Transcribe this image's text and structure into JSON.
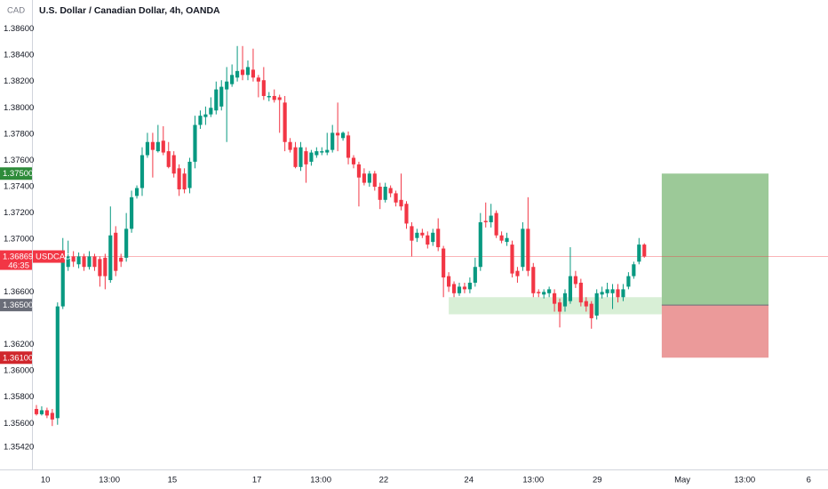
{
  "header": {
    "currency": "CAD"
  },
  "chart_data": {
    "type": "candlestick",
    "title": "U.S. Dollar / Canadian Dollar, 4h, OANDA",
    "x": [
      0,
      1,
      2,
      3,
      4,
      5,
      6,
      7,
      8,
      9,
      10,
      11,
      12,
      13,
      14,
      15,
      16,
      17,
      18,
      19,
      20,
      21,
      22,
      23,
      24,
      25,
      26,
      27,
      28,
      29,
      30,
      31,
      32,
      33,
      34,
      35,
      36,
      37,
      38,
      39,
      40,
      41,
      42,
      43,
      44,
      45,
      46,
      47,
      48,
      49,
      50,
      51,
      52,
      53,
      54,
      55,
      56,
      57,
      58,
      59,
      60,
      61,
      62,
      63,
      64,
      65,
      66,
      67,
      68,
      69,
      70,
      71,
      72,
      73,
      74,
      75,
      76,
      77,
      78,
      79,
      80,
      81,
      82,
      83,
      84,
      85,
      86,
      87,
      88,
      89,
      90,
      91,
      92,
      93,
      94,
      95,
      96,
      97,
      98,
      99,
      100,
      101,
      102,
      103,
      104,
      105,
      106,
      107,
      108,
      109,
      110,
      111,
      112,
      113,
      114,
      115
    ],
    "open": [
      1.3571,
      1.3567,
      1.357,
      1.3568,
      1.3564,
      1.3649,
      1.3679,
      1.3687,
      1.3681,
      1.3687,
      1.3679,
      1.3687,
      1.3685,
      1.3686,
      1.3669,
      1.3705,
      1.3686,
      1.3686,
      1.3708,
      1.3733,
      1.3739,
      1.3764,
      1.3774,
      1.3767,
      1.3775,
      1.3767,
      1.3764,
      1.3754,
      1.375,
      1.3739,
      1.3759,
      1.3787,
      1.3793,
      1.3795,
      1.3798,
      1.3801,
      1.3814,
      1.3818,
      1.3823,
      1.3829,
      1.3825,
      1.3829,
      1.3823,
      1.3821,
      1.3808,
      1.3809,
      1.3808,
      1.3804,
      1.3774,
      1.377,
      1.3755,
      1.3767,
      1.3759,
      1.3764,
      1.3766,
      1.3766,
      1.3768,
      1.3781,
      1.3777,
      1.3779,
      1.3762,
      1.3757,
      1.375,
      1.3743,
      1.375,
      1.374,
      1.373,
      1.3739,
      1.3735,
      1.373,
      1.3727,
      1.371,
      1.3701,
      1.3705,
      1.3703,
      1.3698,
      1.3708,
      1.3693,
      1.3672,
      1.3666,
      1.3659,
      1.3664,
      1.3662,
      1.3667,
      1.3679,
      1.3714,
      1.3713,
      1.372,
      1.3703,
      1.3698,
      1.3696,
      1.3676,
      1.3679,
      1.3708,
      1.3679,
      1.366,
      1.3658,
      1.3659,
      1.3659,
      1.3652,
      1.3649,
      1.3653,
      1.3672,
      1.3667,
      1.3653,
      1.3651,
      1.3642,
      1.3658,
      1.3659,
      1.3659,
      1.3662,
      1.3656,
      1.3664,
      1.3672,
      1.3683,
      1.3696
    ],
    "high": [
      1.3574,
      1.3573,
      1.3572,
      1.3571,
      1.3652,
      1.3701,
      1.3699,
      1.3691,
      1.369,
      1.3689,
      1.3691,
      1.3689,
      1.3687,
      1.3689,
      1.3725,
      1.371,
      1.3689,
      1.372,
      1.3737,
      1.3741,
      1.377,
      1.3781,
      1.3781,
      1.3787,
      1.3786,
      1.3774,
      1.3767,
      1.3757,
      1.3754,
      1.3762,
      1.3794,
      1.3798,
      1.3801,
      1.3808,
      1.382,
      1.3821,
      1.3831,
      1.3833,
      1.3847,
      1.3847,
      1.3836,
      1.3845,
      1.3825,
      1.3831,
      1.3812,
      1.3814,
      1.381,
      1.3809,
      1.3777,
      1.3774,
      1.3774,
      1.377,
      1.3768,
      1.377,
      1.377,
      1.3781,
      1.3787,
      1.3804,
      1.3782,
      1.3782,
      1.3764,
      1.3759,
      1.3754,
      1.3752,
      1.3752,
      1.3743,
      1.3743,
      1.3741,
      1.3737,
      1.375,
      1.3729,
      1.3713,
      1.3708,
      1.3708,
      1.3706,
      1.3708,
      1.3716,
      1.3695,
      1.3675,
      1.3668,
      1.3667,
      1.3667,
      1.3671,
      1.3686,
      1.372,
      1.3728,
      1.3727,
      1.3722,
      1.3706,
      1.3705,
      1.3699,
      1.3679,
      1.3713,
      1.3732,
      1.3682,
      1.3662,
      1.3662,
      1.3664,
      1.3662,
      1.3655,
      1.3662,
      1.3694,
      1.3676,
      1.367,
      1.3656,
      1.3653,
      1.3662,
      1.3664,
      1.3667,
      1.3666,
      1.3666,
      1.3666,
      1.3675,
      1.3683,
      1.3701,
      1.3697
    ],
    "low": [
      1.3566,
      1.3566,
      1.3564,
      1.3558,
      1.3559,
      1.3647,
      1.3676,
      1.3679,
      1.3678,
      1.3676,
      1.3677,
      1.3676,
      1.3664,
      1.3662,
      1.3667,
      1.3672,
      1.3679,
      1.3683,
      1.3705,
      1.3731,
      1.3733,
      1.3762,
      1.3747,
      1.3766,
      1.3764,
      1.3754,
      1.3747,
      1.3733,
      1.3735,
      1.3735,
      1.3754,
      1.3784,
      1.3787,
      1.3793,
      1.3795,
      1.3798,
      1.3774,
      1.3816,
      1.382,
      1.3821,
      1.3821,
      1.382,
      1.3808,
      1.3806,
      1.3805,
      1.3804,
      1.3781,
      1.3767,
      1.3766,
      1.3754,
      1.3752,
      1.3743,
      1.3756,
      1.3762,
      1.3764,
      1.3764,
      1.3766,
      1.3767,
      1.3775,
      1.3757,
      1.3754,
      1.3725,
      1.3741,
      1.374,
      1.3737,
      1.3723,
      1.3728,
      1.3732,
      1.3725,
      1.3722,
      1.3708,
      1.3687,
      1.3698,
      1.3701,
      1.3693,
      1.3695,
      1.3691,
      1.3656,
      1.366,
      1.3656,
      1.3657,
      1.3659,
      1.3659,
      1.3664,
      1.3676,
      1.3709,
      1.3709,
      1.3701,
      1.3697,
      1.3695,
      1.3671,
      1.3667,
      1.3676,
      1.3672,
      1.3656,
      1.3656,
      1.3655,
      1.3656,
      1.3645,
      1.3633,
      1.3645,
      1.3651,
      1.3663,
      1.3649,
      1.3645,
      1.3632,
      1.3639,
      1.3655,
      1.3656,
      1.3647,
      1.3652,
      1.3653,
      1.3662,
      1.367,
      1.3681,
      1.3686
    ],
    "close": [
      1.3567,
      1.357,
      1.3566,
      1.3563,
      1.3649,
      1.3683,
      1.3687,
      1.3683,
      1.3687,
      1.3679,
      1.3687,
      1.3679,
      1.3672,
      1.3672,
      1.3703,
      1.3676,
      1.3683,
      1.3708,
      1.3732,
      1.3739,
      1.3764,
      1.3774,
      1.3768,
      1.3774,
      1.3766,
      1.3755,
      1.375,
      1.3738,
      1.3738,
      1.3759,
      1.3787,
      1.3794,
      1.3795,
      1.38,
      1.3814,
      1.3816,
      1.382,
      1.3825,
      1.3828,
      1.3825,
      1.3831,
      1.3823,
      1.382,
      1.3809,
      1.3809,
      1.3806,
      1.3806,
      1.3774,
      1.3768,
      1.3755,
      1.377,
      1.3757,
      1.3766,
      1.3767,
      1.3767,
      1.3768,
      1.3781,
      1.3779,
      1.3781,
      1.3762,
      1.3757,
      1.3747,
      1.3743,
      1.375,
      1.374,
      1.373,
      1.374,
      1.3735,
      1.3728,
      1.3725,
      1.3712,
      1.3699,
      1.3705,
      1.3703,
      1.3696,
      1.3705,
      1.3694,
      1.3671,
      1.3664,
      1.3659,
      1.3664,
      1.3662,
      1.3667,
      1.3679,
      1.3713,
      1.3713,
      1.3718,
      1.3703,
      1.3699,
      1.3701,
      1.3674,
      1.3672,
      1.3708,
      1.3676,
      1.3659,
      1.3659,
      1.366,
      1.3662,
      1.3651,
      1.3645,
      1.3659,
      1.3672,
      1.3666,
      1.3652,
      1.3649,
      1.364,
      1.3659,
      1.366,
      1.3662,
      1.3662,
      1.3656,
      1.3662,
      1.3672,
      1.3681,
      1.3696,
      1.3687
    ],
    "up_color": "#089981",
    "down_color": "#f23645",
    "xlim": [
      -0.84,
      149.75
    ],
    "xticks": [
      {
        "value": 1.7,
        "label": "10"
      },
      {
        "value": 13.8,
        "label": "13:00"
      },
      {
        "value": 25.7,
        "label": "15"
      },
      {
        "value": 41.7,
        "label": "17"
      },
      {
        "value": 53.8,
        "label": "13:00"
      },
      {
        "value": 65.7,
        "label": "22"
      },
      {
        "value": 81.8,
        "label": "24"
      },
      {
        "value": 94.0,
        "label": "13:00"
      },
      {
        "value": 106.1,
        "label": "29"
      },
      {
        "value": 122.2,
        "label": "May"
      },
      {
        "value": 134.0,
        "label": "13:00"
      },
      {
        "value": 146.1,
        "label": "6"
      }
    ],
    "ylim": [
      1.3525,
      1.3882
    ],
    "yticks": [
      {
        "value": 1.386,
        "label": "1.38600"
      },
      {
        "value": 1.384,
        "label": "1.38400"
      },
      {
        "value": 1.382,
        "label": "1.38200"
      },
      {
        "value": 1.38,
        "label": "1.38000"
      },
      {
        "value": 1.378,
        "label": "1.37800"
      },
      {
        "value": 1.376,
        "label": "1.37600"
      },
      {
        "value": 1.374,
        "label": "1.37400"
      },
      {
        "value": 1.372,
        "label": "1.37200"
      },
      {
        "value": 1.37,
        "label": "1.37000"
      },
      {
        "value": 1.366,
        "label": "1.36600"
      },
      {
        "value": 1.362,
        "label": "1.36200"
      },
      {
        "value": 1.36,
        "label": "1.36000"
      },
      {
        "value": 1.358,
        "label": "1.35800"
      },
      {
        "value": 1.356,
        "label": "1.35600"
      },
      {
        "value": 1.3542,
        "label": "1.35420"
      }
    ],
    "grid": false,
    "price_line": {
      "value": 1.36869,
      "label": "1.36869",
      "symbol": "USDCAD",
      "countdown": "46:35",
      "color": "#f23645"
    },
    "position": {
      "x_range": [
        118.3,
        138.5
      ],
      "target": {
        "value": 1.375,
        "label": "1.37500",
        "color": "#2e8b3a"
      },
      "entry": {
        "value": 1.365,
        "label": "1.36500",
        "color": "#6a6d78"
      },
      "stop": {
        "value": 1.361,
        "label": "1.36100",
        "color": "#d0262c"
      },
      "profit_color": "#9cc998",
      "loss_color": "#eb9a9a"
    },
    "zone": {
      "x_range": [
        78.0,
        118.3
      ],
      "y_range": [
        1.3643,
        1.3656
      ],
      "color": "#d8efd6"
    }
  }
}
